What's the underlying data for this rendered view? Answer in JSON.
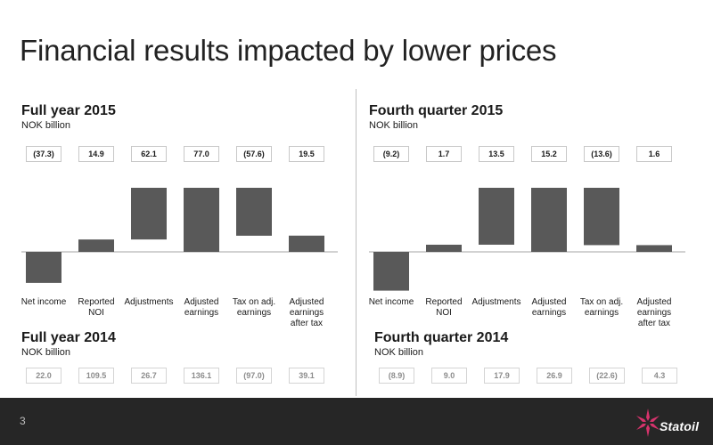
{
  "title": "Financial results impacted by lower prices",
  "chart_data": [
    {
      "type": "bar",
      "title": "Full year 2015",
      "ylabel": "NOK billion",
      "categories": [
        "Net income",
        "Reported NOI",
        "Adjustments",
        "Adjusted earnings",
        "Tax on adj. earnings",
        "Adjusted earnings after tax"
      ],
      "values": [
        -37.3,
        14.9,
        62.1,
        77.0,
        -57.6,
        19.5
      ],
      "value_labels": [
        "(37.3)",
        "14.9",
        "62.1",
        "77.0",
        "(57.6)",
        "19.5"
      ]
    },
    {
      "type": "bar",
      "title": "Fourth quarter 2015",
      "ylabel": "NOK billion",
      "categories": [
        "Net income",
        "Reported NOI",
        "Adjustments",
        "Adjusted earnings",
        "Tax on adj. earnings",
        "Adjusted earnings after tax"
      ],
      "values": [
        -9.2,
        1.7,
        13.5,
        15.2,
        -13.6,
        1.6
      ],
      "value_labels": [
        "(9.2)",
        "1.7",
        "13.5",
        "15.2",
        "(13.6)",
        "1.6"
      ]
    }
  ],
  "comparison": [
    {
      "title": "Full year 2014",
      "unit": "NOK billion",
      "values": [
        "22.0",
        "109.5",
        "26.7",
        "136.1",
        "(97.0)",
        "39.1"
      ]
    },
    {
      "title": "Fourth quarter 2014",
      "unit": "NOK billion",
      "values": [
        "(8.9)",
        "9.0",
        "17.9",
        "26.9",
        "(22.6)",
        "4.3"
      ]
    }
  ],
  "footer": {
    "page": "3",
    "logo_text": "Statoil"
  },
  "colors": {
    "bar": "#595959",
    "axis": "#a6a6a6",
    "footer": "#262626",
    "logo_star": "#d6336c"
  }
}
